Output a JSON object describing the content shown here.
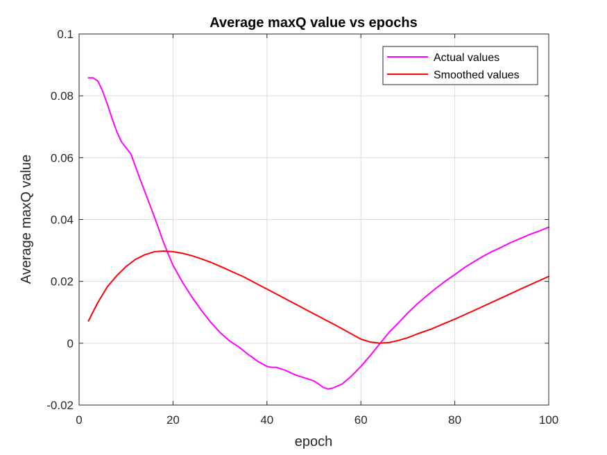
{
  "chart_data": {
    "type": "line",
    "title": "Average maxQ value vs epochs",
    "xlabel": "epoch",
    "ylabel": "Average maxQ value",
    "xlim": [
      0,
      100
    ],
    "ylim": [
      -0.02,
      0.1
    ],
    "grid": true,
    "legend_position": "top-right",
    "x_ticks": [
      "0",
      "20",
      "40",
      "60",
      "80",
      "100"
    ],
    "y_ticks": [
      "-0.02",
      "0",
      "0.02",
      "0.04",
      "0.06",
      "0.08",
      "0.1"
    ],
    "series": [
      {
        "name": "Actual values",
        "color": "#ff00ff",
        "x": [
          2,
          3,
          4,
          5,
          6,
          7,
          8,
          9,
          10,
          11,
          12,
          13,
          14,
          15,
          16,
          17,
          18,
          19,
          20,
          22,
          24,
          26,
          28,
          30,
          32,
          34,
          36,
          38,
          40,
          41,
          42,
          44,
          46,
          48,
          50,
          51,
          52,
          53,
          54,
          56,
          58,
          60,
          62,
          64,
          66,
          68,
          70,
          72,
          74,
          76,
          78,
          80,
          82,
          84,
          86,
          88,
          90,
          92,
          94,
          96,
          98,
          100
        ],
        "y": [
          0.0858,
          0.0858,
          0.0848,
          0.0816,
          0.0774,
          0.0728,
          0.0685,
          0.0652,
          0.0632,
          0.0613,
          0.0572,
          0.053,
          0.049,
          0.045,
          0.041,
          0.0368,
          0.0325,
          0.0288,
          0.0252,
          0.0198,
          0.015,
          0.0107,
          0.0068,
          0.0035,
          0.0008,
          -0.0012,
          -0.0036,
          -0.0058,
          -0.0075,
          -0.0078,
          -0.0078,
          -0.0088,
          -0.0102,
          -0.0112,
          -0.0122,
          -0.0132,
          -0.0143,
          -0.0148,
          -0.0145,
          -0.0132,
          -0.0106,
          -0.0075,
          -0.004,
          -0.0002,
          0.0035,
          0.0066,
          0.0098,
          0.0127,
          0.0153,
          0.0178,
          0.0201,
          0.0222,
          0.0244,
          0.0263,
          0.0281,
          0.0297,
          0.0311,
          0.0326,
          0.0339,
          0.0352,
          0.0363,
          0.0375
        ]
      },
      {
        "name": "Smoothed values",
        "color": "#ff0000",
        "x": [
          2,
          4,
          6,
          8,
          10,
          12,
          14,
          16,
          18,
          20,
          22,
          24,
          26,
          28,
          30,
          35,
          40,
          45,
          50,
          55,
          58,
          60,
          62,
          64,
          66,
          68,
          70,
          72,
          75,
          80,
          85,
          90,
          95,
          100
        ],
        "y": [
          0.0072,
          0.0132,
          0.0182,
          0.0218,
          0.0248,
          0.0271,
          0.0286,
          0.0296,
          0.0298,
          0.0296,
          0.0291,
          0.0283,
          0.0273,
          0.0262,
          0.0249,
          0.0215,
          0.0175,
          0.0135,
          0.0095,
          0.0055,
          0.003,
          0.0013,
          0.0004,
          0.0,
          0.0002,
          0.0009,
          0.0018,
          0.003,
          0.0046,
          0.0078,
          0.0112,
          0.0147,
          0.0182,
          0.0216
        ]
      }
    ]
  }
}
